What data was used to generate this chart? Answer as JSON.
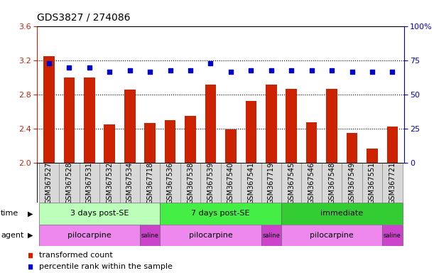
{
  "title": "GDS3827 / 274086",
  "samples": [
    "GSM367527",
    "GSM367528",
    "GSM367531",
    "GSM367532",
    "GSM367534",
    "GSM367718",
    "GSM367536",
    "GSM367538",
    "GSM367539",
    "GSM367540",
    "GSM367541",
    "GSM367719",
    "GSM367545",
    "GSM367546",
    "GSM367548",
    "GSM367549",
    "GSM367551",
    "GSM367721"
  ],
  "transformed_count": [
    3.25,
    3.0,
    3.0,
    2.45,
    2.86,
    2.47,
    2.5,
    2.55,
    2.92,
    2.39,
    2.73,
    2.92,
    2.87,
    2.48,
    2.87,
    2.35,
    2.17,
    2.43
  ],
  "percentile_rank": [
    73,
    70,
    70,
    67,
    68,
    67,
    68,
    68,
    73,
    67,
    68,
    68,
    68,
    68,
    68,
    67,
    67,
    67
  ],
  "ylim_left": [
    2.0,
    3.6
  ],
  "ylim_right": [
    0,
    100
  ],
  "yticks_left": [
    2.0,
    2.4,
    2.8,
    3.2,
    3.6
  ],
  "yticks_right": [
    0,
    25,
    50,
    75,
    100
  ],
  "bar_color": "#cc2200",
  "dot_color": "#0000cc",
  "time_groups": [
    {
      "label": "3 days post-SE",
      "start": 0,
      "end": 5,
      "color": "#bbffbb"
    },
    {
      "label": "7 days post-SE",
      "start": 6,
      "end": 11,
      "color": "#44ee44"
    },
    {
      "label": "immediate",
      "start": 12,
      "end": 17,
      "color": "#33cc33"
    }
  ],
  "agent_groups": [
    {
      "label": "pilocarpine",
      "start": 0,
      "end": 4,
      "color": "#ee88ee"
    },
    {
      "label": "saline",
      "start": 5,
      "end": 5,
      "color": "#cc44cc"
    },
    {
      "label": "pilocarpine",
      "start": 6,
      "end": 10,
      "color": "#ee88ee"
    },
    {
      "label": "saline",
      "start": 11,
      "end": 11,
      "color": "#cc44cc"
    },
    {
      "label": "pilocarpine",
      "start": 12,
      "end": 16,
      "color": "#ee88ee"
    },
    {
      "label": "saline",
      "start": 17,
      "end": 17,
      "color": "#cc44cc"
    }
  ],
  "bar_width": 0.55,
  "dot_size": 25,
  "label_fontsize": 7,
  "row_label_fontsize": 8,
  "group_fontsize": 8,
  "title_fontsize": 10,
  "legend_fontsize": 8
}
